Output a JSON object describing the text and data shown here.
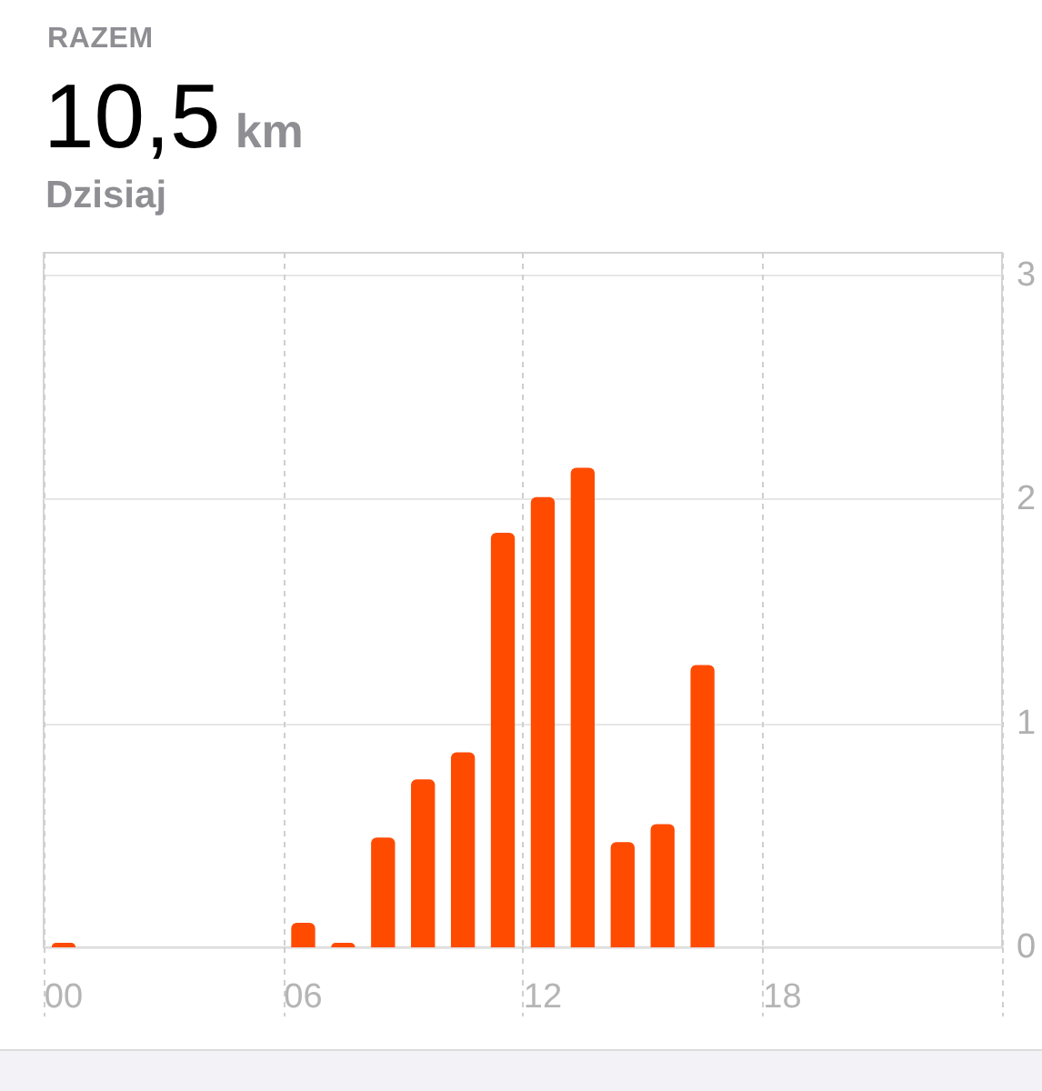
{
  "chart_data": {
    "type": "bar",
    "title": "RAZEM",
    "subtitle": "Dzisiaj",
    "annotations": [
      "10,5 km"
    ],
    "categories": [
      "00",
      null,
      null,
      null,
      null,
      null,
      "06",
      null,
      null,
      null,
      null,
      null,
      "12",
      null,
      null,
      null,
      null,
      null,
      "18",
      null,
      null,
      null,
      null,
      null
    ],
    "values": [
      0.02,
      0,
      0,
      0,
      0,
      0,
      0.11,
      0.02,
      0.49,
      0.75,
      0.87,
      1.85,
      2.01,
      2.14,
      0.47,
      0.55,
      1.26,
      0,
      0,
      0,
      0,
      0,
      0,
      0
    ],
    "color": "#ff4b00",
    "ylim": [
      0,
      3.1
    ],
    "yticks": [
      0,
      1,
      2,
      3
    ],
    "grid": true
  }
}
